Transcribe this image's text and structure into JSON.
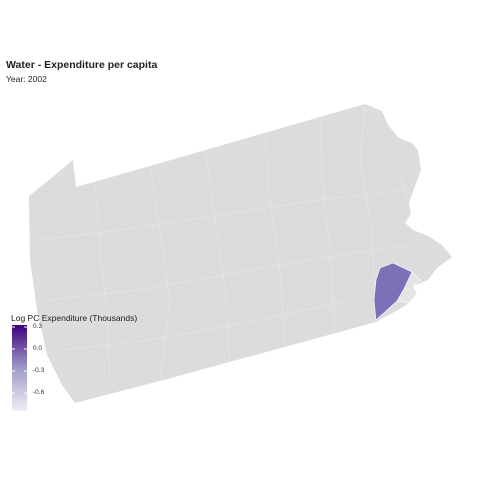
{
  "title": "Water - Expenditure per capita",
  "subtitle": "Year: 2002",
  "map": {
    "region": "Pennsylvania",
    "base_fill": "#dcdcdc",
    "border_color": "#e8e8e8",
    "highlighted_county_fill": "#7a71b8"
  },
  "legend": {
    "title": "Log PC Expenditure (Thousands)",
    "ticks": [
      "0.3",
      "0.0",
      "-0.3",
      "-0.6"
    ],
    "color_high": "#3f007d",
    "color_low": "#f0eef6"
  }
}
